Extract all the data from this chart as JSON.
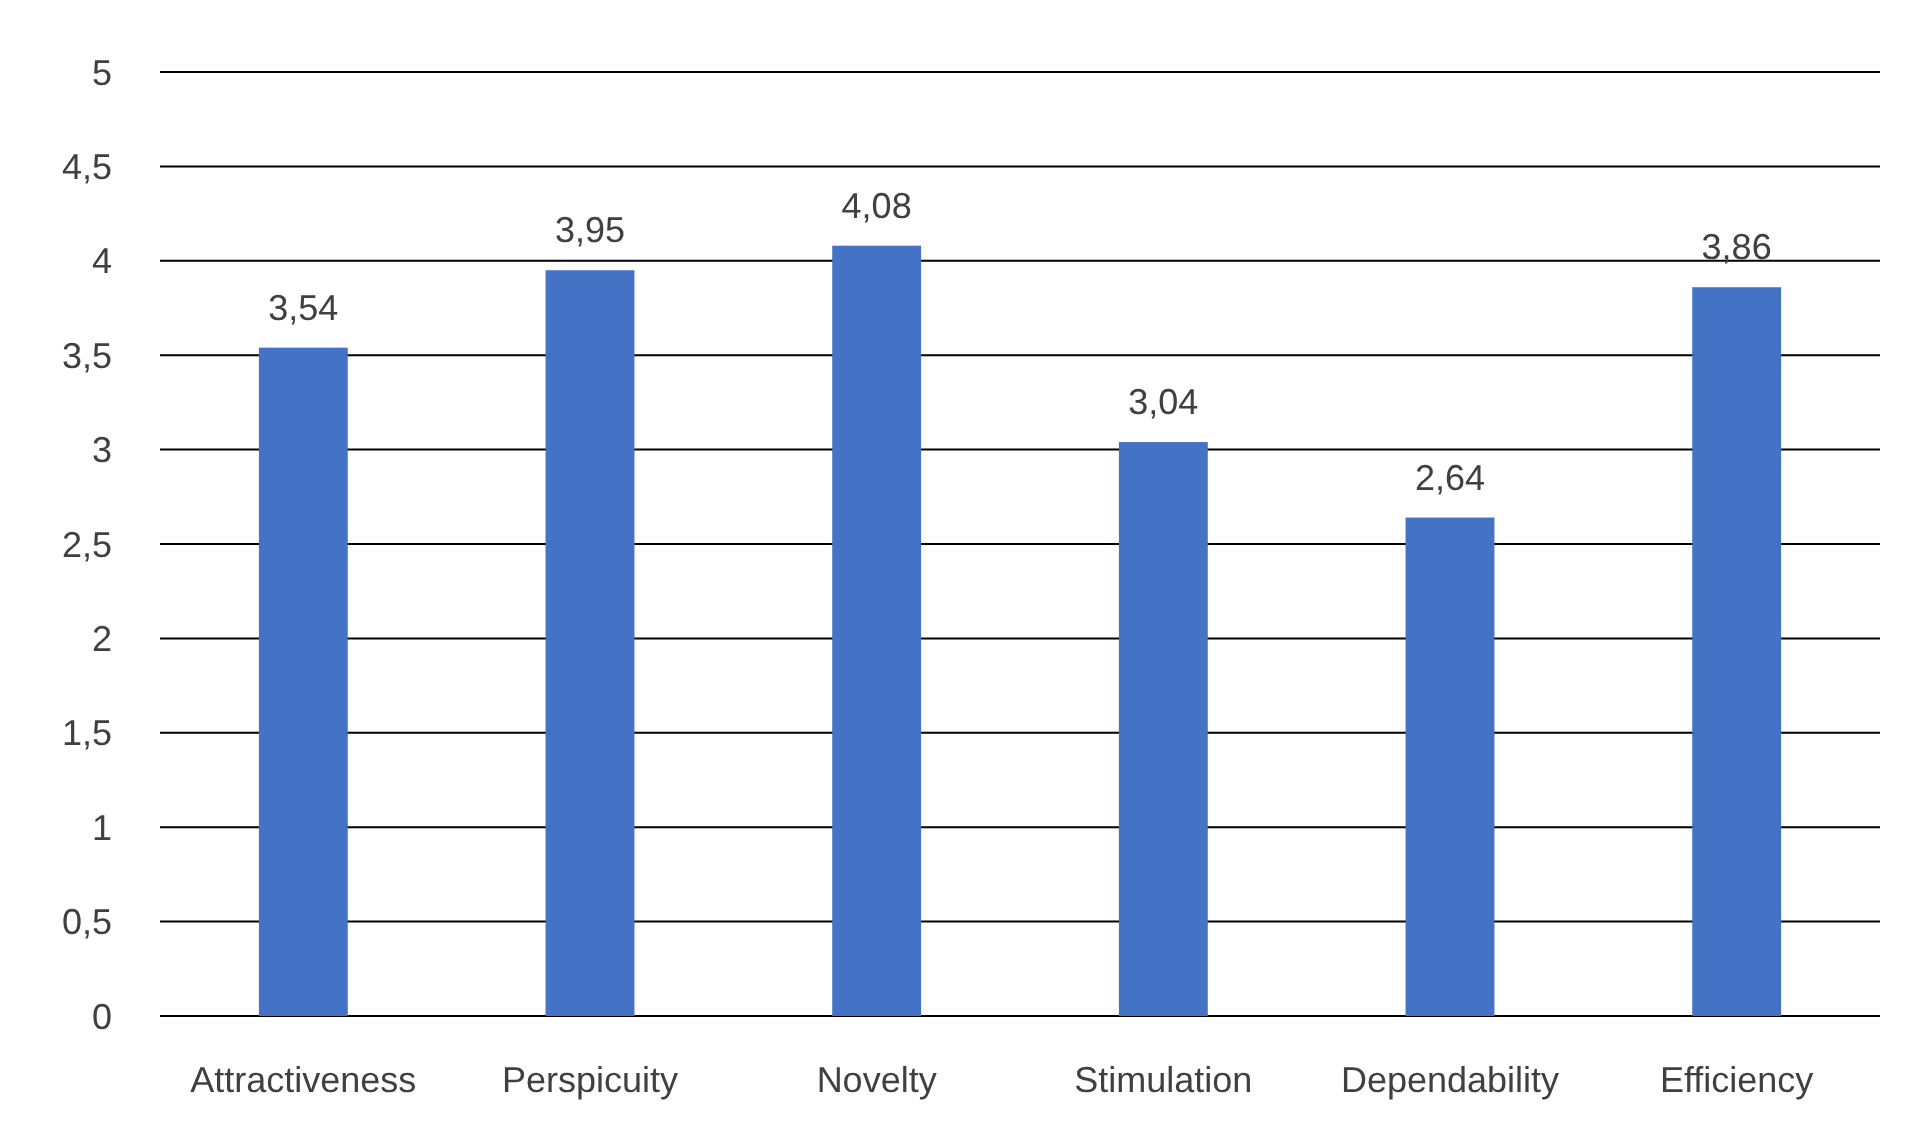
{
  "chart_data": {
    "type": "bar",
    "categories": [
      "Attractiveness",
      "Perspicuity",
      "Novelty",
      "Stimulation",
      "Dependability",
      "Efficiency"
    ],
    "values": [
      3.54,
      3.95,
      4.08,
      3.04,
      2.64,
      3.86
    ],
    "value_labels": [
      "3,54",
      "3,95",
      "4,08",
      "3,04",
      "2,64",
      "3,86"
    ],
    "color": "#4472c4",
    "ylim": [
      0,
      5
    ],
    "yticks": [
      0,
      {
        "value": 0.5,
        "label": "0,5"
      },
      1,
      {
        "value": 1.5,
        "label": "1,5"
      },
      2,
      {
        "value": 2.5,
        "label": "2,5"
      },
      3,
      {
        "value": 3.5,
        "label": "3,5"
      },
      4,
      {
        "value": 4.5,
        "label": "4,5"
      },
      5
    ],
    "grid": "y"
  }
}
